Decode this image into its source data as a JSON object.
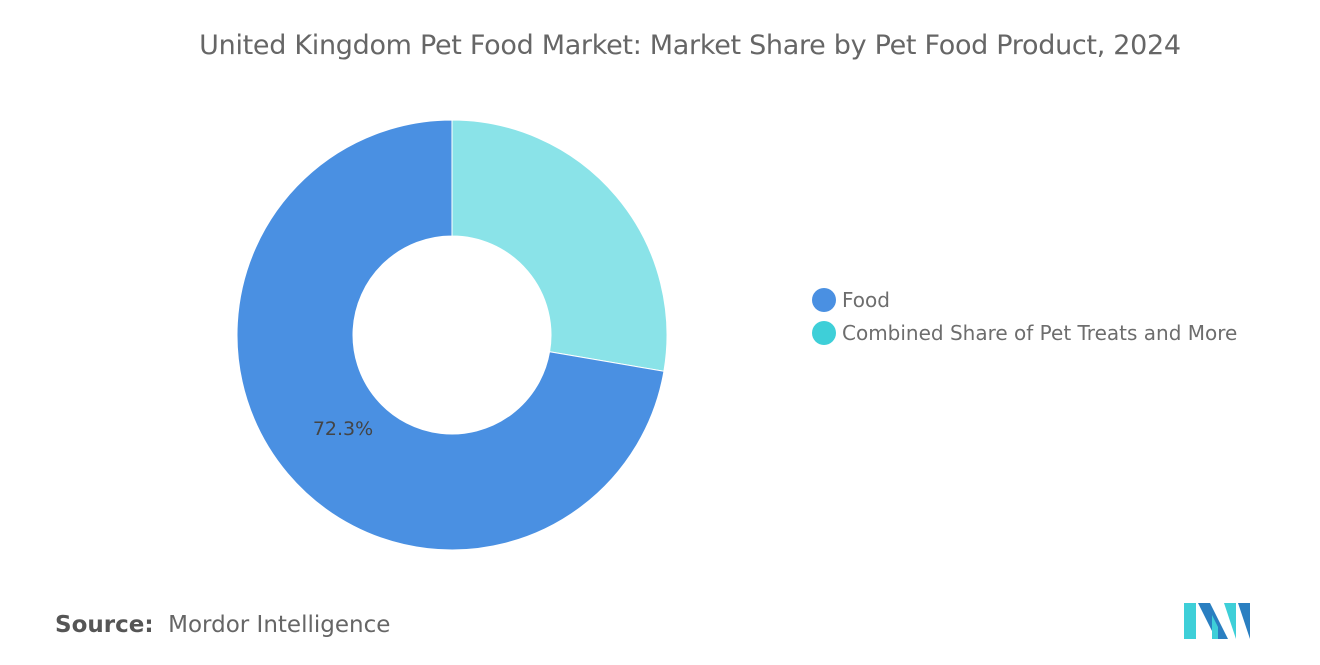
{
  "chart_data": {
    "type": "pie",
    "donut": true,
    "title": "United Kingdom Pet Food Market: Market Share by Pet Food Product, 2024",
    "slices": [
      {
        "name": "Combined Share of Pet Treats and More",
        "value": 27.7,
        "color": "#8ae3e8",
        "legend_color": "#3ecfd8",
        "label": ""
      },
      {
        "name": "Food",
        "value": 72.3,
        "color": "#4a90e2",
        "legend_color": "#4a90e2",
        "label": "72.3%"
      }
    ],
    "legend_order": [
      "Food",
      "Combined Share of Pet Treats and More"
    ],
    "legend_position": "right"
  },
  "source": {
    "label": "Source:",
    "value": "Mordor Intelligence"
  },
  "logo": {
    "text": "Mordor Intelligence",
    "colors": [
      "#2a7fc1",
      "#3ecfd8"
    ]
  }
}
